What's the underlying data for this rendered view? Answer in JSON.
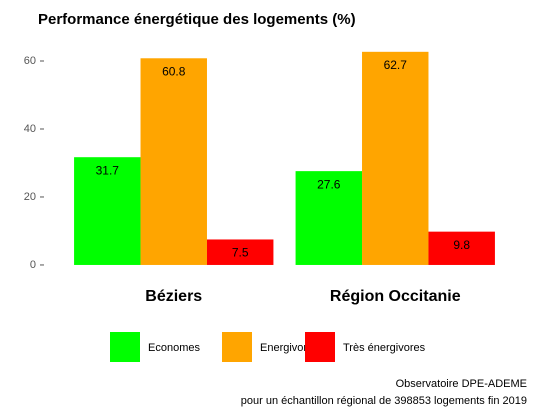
{
  "chart_data": {
    "type": "bar",
    "title": "Performance énergétique des logements (%)",
    "categories": [
      "Béziers",
      "Région Occitanie"
    ],
    "series": [
      {
        "name": "Economes",
        "color": "#00ff00",
        "values": [
          31.7,
          27.6
        ]
      },
      {
        "name": "Energivores",
        "color": "#ffa500",
        "values": [
          60.8,
          62.7
        ]
      },
      {
        "name": "Très énergivores",
        "color": "#ff0000",
        "values": [
          7.5,
          9.8
        ]
      }
    ],
    "ylim": [
      -3.1,
      66
    ],
    "yticks": [
      0,
      20,
      40,
      60
    ],
    "grid": false,
    "legend": "bottom",
    "caption": [
      "Observatoire DPE-ADEME",
      "pour un échantillon régional de 398853 logements fin 2019"
    ]
  }
}
